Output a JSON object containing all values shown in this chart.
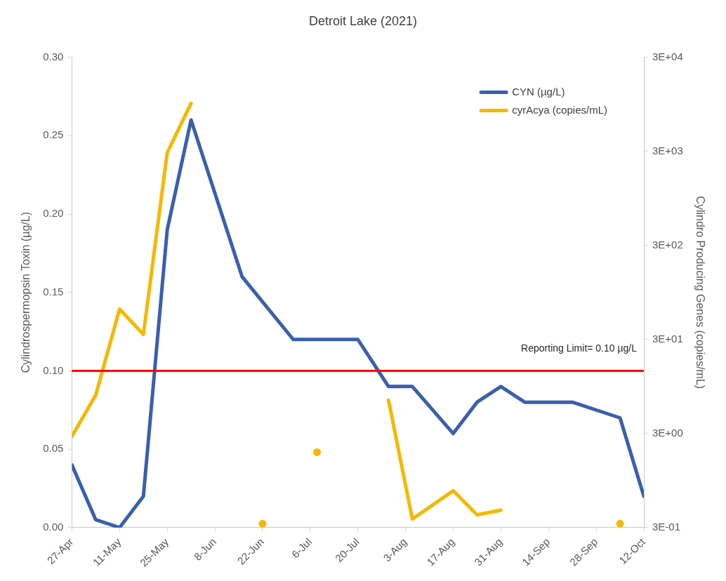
{
  "chart_data": {
    "type": "line",
    "title": "Detroit Lake (2021)",
    "ylabel": "Cylindrospermopsin Toxin (µg/L)",
    "y2label": "Cylindro Producing Genes (copies/mL)",
    "xlim": [
      "2021-04-27",
      "2021-10-12"
    ],
    "xticks": [
      {
        "value": "2021-04-27",
        "label": "27-Apr"
      },
      {
        "value": "2021-05-11",
        "label": "11-May"
      },
      {
        "value": "2021-05-25",
        "label": "25-May"
      },
      {
        "value": "2021-06-08",
        "label": "8-Jun"
      },
      {
        "value": "2021-06-22",
        "label": "22-Jun"
      },
      {
        "value": "2021-07-06",
        "label": "6-Jul"
      },
      {
        "value": "2021-07-20",
        "label": "20-Jul"
      },
      {
        "value": "2021-08-03",
        "label": "3-Aug"
      },
      {
        "value": "2021-08-17",
        "label": "17-Aug"
      },
      {
        "value": "2021-08-31",
        "label": "31-Aug"
      },
      {
        "value": "2021-09-14",
        "label": "14-Sep"
      },
      {
        "value": "2021-09-28",
        "label": "28-Sep"
      },
      {
        "value": "2021-10-12",
        "label": "12-Oct"
      }
    ],
    "ylim": [
      0,
      0.3
    ],
    "yticks": [
      {
        "value": 0,
        "label": "0.00"
      },
      {
        "value": 0.05,
        "label": "0.05"
      },
      {
        "value": 0.1,
        "label": "0.10"
      },
      {
        "value": 0.15,
        "label": "0.15"
      },
      {
        "value": 0.2,
        "label": "0.20"
      },
      {
        "value": 0.25,
        "label": "0.25"
      },
      {
        "value": 0.3,
        "label": "0.30"
      }
    ],
    "y2lim": [
      0.3,
      30000
    ],
    "y2ticks": [
      {
        "value": 0.3,
        "label": "3E-01"
      },
      {
        "value": 3,
        "label": "3E+00"
      },
      {
        "value": 30,
        "label": "3E+01"
      },
      {
        "value": 300,
        "label": "3E+02"
      },
      {
        "value": 3000,
        "label": "3E+03"
      },
      {
        "value": 30000,
        "label": "3E+04"
      }
    ],
    "log": "y2",
    "grid": false,
    "legend": "top right",
    "series": [
      {
        "name": "CYN (µg/L)",
        "color": "#3a5fb0",
        "x": [
          "2021-04-27",
          "2021-05-04",
          "2021-05-11",
          "2021-05-18",
          "2021-05-25",
          "2021-06-01",
          "2021-06-16",
          "2021-07-01",
          "2021-07-20",
          "2021-07-29",
          "2021-08-05",
          "2021-08-17",
          "2021-08-24",
          "2021-08-31",
          "2021-09-07",
          "2021-09-21",
          "2021-10-05",
          "2021-10-12"
        ],
        "values": [
          0.04,
          0.005,
          0.0,
          0.02,
          0.19,
          0.26,
          0.16,
          0.12,
          0.12,
          0.09,
          0.09,
          0.06,
          0.08,
          0.09,
          0.08,
          0.08,
          0.07,
          0.02
        ]
      },
      {
        "name": "cyrAcya (copies/mL)",
        "color": "#f5b800",
        "axis": "y2",
        "x": [
          "2021-04-27",
          "2021-05-04",
          "2021-05-11",
          "2021-05-18",
          "2021-05-25",
          "2021-06-01",
          "2021-06-16",
          "2021-06-22",
          "2021-07-01",
          "2021-07-08",
          "2021-07-20",
          "2021-07-29",
          "2021-08-05",
          "2021-08-17",
          "2021-08-24",
          "2021-08-31",
          "2021-09-07",
          "2021-09-21",
          "2021-10-05"
        ],
        "values": [
          2.8,
          7.7,
          63,
          34,
          2900,
          9700,
          null,
          0.33,
          null,
          1.9,
          null,
          6.8,
          0.37,
          0.74,
          0.41,
          0.46,
          null,
          null,
          0.33
        ]
      }
    ],
    "ref_lines": [
      {
        "axis": "y",
        "value": 0.1,
        "label": "Reporting Limit= 0.10 µg/L",
        "color": "#ff0000"
      }
    ]
  }
}
